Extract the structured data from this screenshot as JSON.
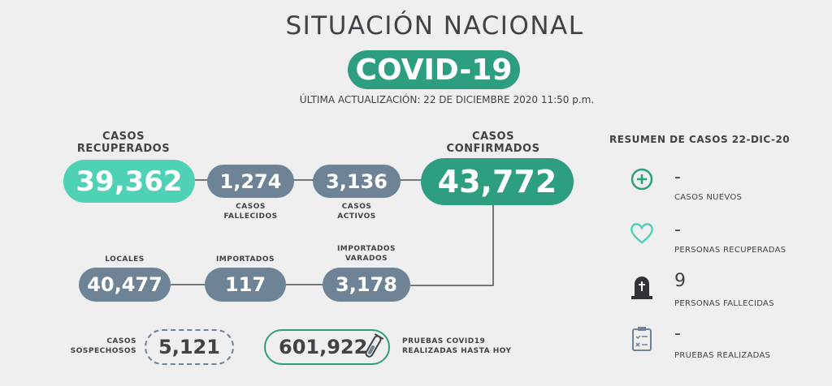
{
  "header": {
    "title": "SITUACIÓN NACIONAL",
    "badge": "COVID-19",
    "updated": "ÚLTIMA ACTUALIZACIÓN: 22 DE DICIEMBRE 2020 11:50 p.m."
  },
  "row1": [
    {
      "label": [
        "CASOS",
        "RECUPERADOS"
      ],
      "value": "39,362"
    },
    {
      "label": [
        "CASOS",
        "FALLECIDOS"
      ],
      "value": "1,274"
    },
    {
      "label": [
        "CASOS",
        "ACTIVOS"
      ],
      "value": "3,136"
    },
    {
      "label": [
        "CASOS",
        "CONFIRMADOS"
      ],
      "value": "43,772"
    }
  ],
  "row2": [
    {
      "label": [
        "LOCALES"
      ],
      "value": "40,477"
    },
    {
      "label": [
        "IMPORTADOS"
      ],
      "value": "117"
    },
    {
      "label": [
        "IMPORTADOS",
        "VARADOS"
      ],
      "value": "3,178"
    }
  ],
  "row3": [
    {
      "label": [
        "CASOS",
        "SOSPECHOSOS"
      ],
      "value": "5,121"
    },
    {
      "label": [
        "PRUEBAS COVID19",
        "REALIZADAS HASTA HOY"
      ],
      "value": "601,922"
    }
  ],
  "summary": {
    "title": "RESUMEN DE CASOS 22-DIC-20",
    "items": [
      {
        "value": "-",
        "label": "CASOS NUEVOS"
      },
      {
        "value": "-",
        "label": "PERSONAS RECUPERADAS"
      },
      {
        "value": "9",
        "label": "PERSONAS FALLECIDAS"
      },
      {
        "value": "-",
        "label": "PRUEBAS REALIZADAS"
      }
    ]
  }
}
